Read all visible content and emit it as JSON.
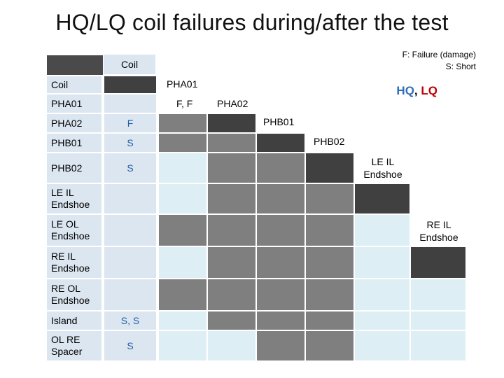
{
  "title": "HQ/LQ coil failures during/after the test",
  "legend": {
    "failure": "F: Failure (damage)",
    "short": "S: Short"
  },
  "quality": {
    "hq": "HQ",
    "separator": ",",
    "lq": "LQ"
  },
  "coil_header": "Coil",
  "colors": {
    "light_blue": "#dce6f1",
    "pale_blue": "#ddeef5",
    "gray": "#7f7f7f",
    "dark_gray": "#404040",
    "hq_blue": "#2f6fb5",
    "lq_red": "#c00000"
  },
  "rows": [
    {
      "label": "Coil",
      "value": ""
    },
    {
      "label": "PHA01",
      "value": ""
    },
    {
      "label": "PHA02",
      "value": "F"
    },
    {
      "label": "PHB01",
      "value": "S"
    },
    {
      "label": "PHB02",
      "value": "S"
    },
    {
      "label": "LE IL Endshoe",
      "value": ""
    },
    {
      "label": "LE OL Endshoe",
      "value": ""
    },
    {
      "label": "RE IL Endshoe",
      "value": ""
    },
    {
      "label": "RE OL Endshoe",
      "value": ""
    },
    {
      "label": "Island",
      "value": "S, S"
    },
    {
      "label": "OL RE Spacer",
      "value": "S"
    }
  ],
  "diagonal_labels": {
    "pha01": "PHA01",
    "pha01_value": "F, F",
    "pha02": "PHA02",
    "phb01": "PHB01",
    "phb02": "PHB02",
    "le_il": "LE IL Endshoe",
    "re_il": "RE IL Endshoe"
  }
}
